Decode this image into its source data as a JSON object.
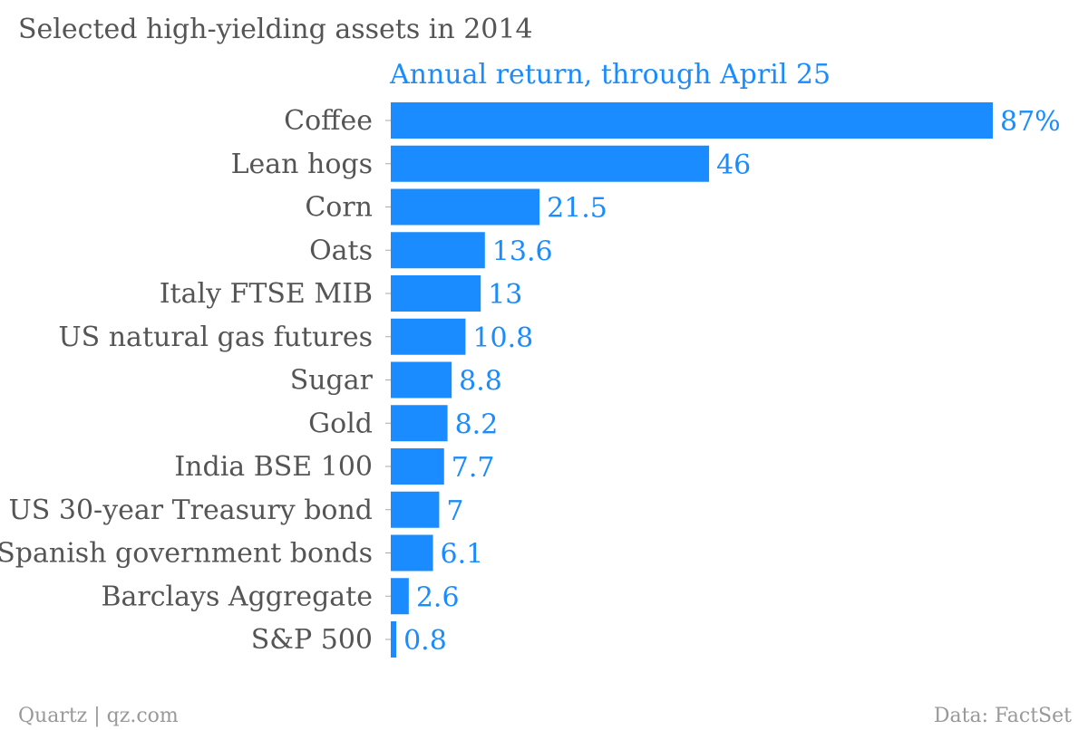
{
  "chart_data": {
    "type": "bar",
    "orientation": "horizontal",
    "title": "Selected high-yielding assets in 2014",
    "subtitle": "Annual return, through April 25",
    "categories": [
      "Coffee",
      "Lean hogs",
      "Corn",
      "Oats",
      "Italy FTSE MIB",
      "US natural gas futures",
      "Sugar",
      "Gold",
      "India BSE 100",
      "US 30-year Treasury bond",
      "Spanish government bonds",
      "Barclays Aggregate",
      "S&P 500"
    ],
    "values": [
      87,
      46,
      21.5,
      13.6,
      13,
      10.8,
      8.8,
      8.2,
      7.7,
      7,
      6.1,
      2.6,
      0.8
    ],
    "value_labels": [
      "87%",
      "46",
      "21.5",
      "13.6",
      "13",
      "10.8",
      "8.8",
      "8.2",
      "7.7",
      "7",
      "6.1",
      "2.6",
      "0.8"
    ],
    "xlim": [
      0,
      87
    ],
    "grid": false,
    "legend": "none",
    "bar_color": "#1a8cff"
  },
  "footer": {
    "source_left": "Quartz | qz.com",
    "source_right": "Data: FactSet"
  }
}
